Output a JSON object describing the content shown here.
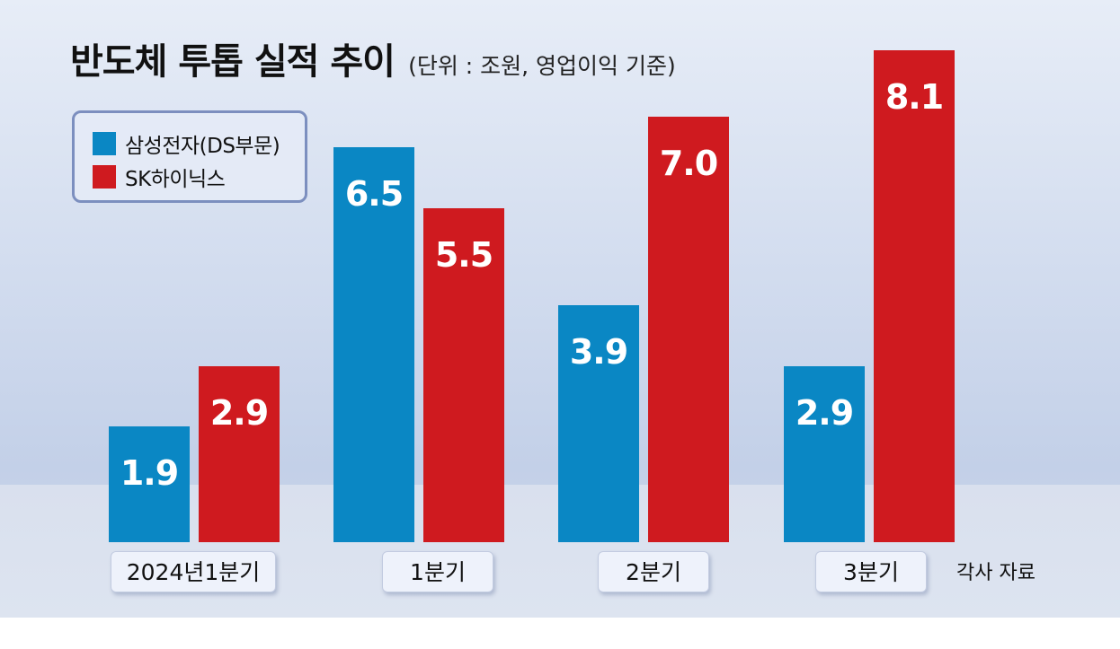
{
  "title": "반도체 투톱 실적 추이",
  "subtitle": "(단위 : 조원, 영업이익 기준)",
  "source": "각사 자료",
  "colors": {
    "samsung": "#0a87c4",
    "skhynix": "#cf1a1f"
  },
  "legend": {
    "items": [
      {
        "label": "삼성전자(DS부문)",
        "color": "#0a87c4"
      },
      {
        "label": "SK하이닉스",
        "color": "#cf1a1f"
      }
    ]
  },
  "chart_data": {
    "type": "bar",
    "categories": [
      "2024년1분기",
      "1분기",
      "2분기",
      "3분기"
    ],
    "series": [
      {
        "name": "삼성전자(DS부문)",
        "values": [
          1.9,
          6.5,
          3.9,
          2.9
        ]
      },
      {
        "name": "SK하이닉스",
        "values": [
          2.9,
          5.5,
          7.0,
          8.1
        ]
      }
    ],
    "value_labels": [
      [
        "1.9",
        "6.5",
        "3.9",
        "2.9"
      ],
      [
        "2.9",
        "5.5",
        "7.0",
        "8.1"
      ]
    ],
    "ylim": [
      0,
      8.1
    ],
    "grid": false,
    "legend_position": "top-left"
  }
}
